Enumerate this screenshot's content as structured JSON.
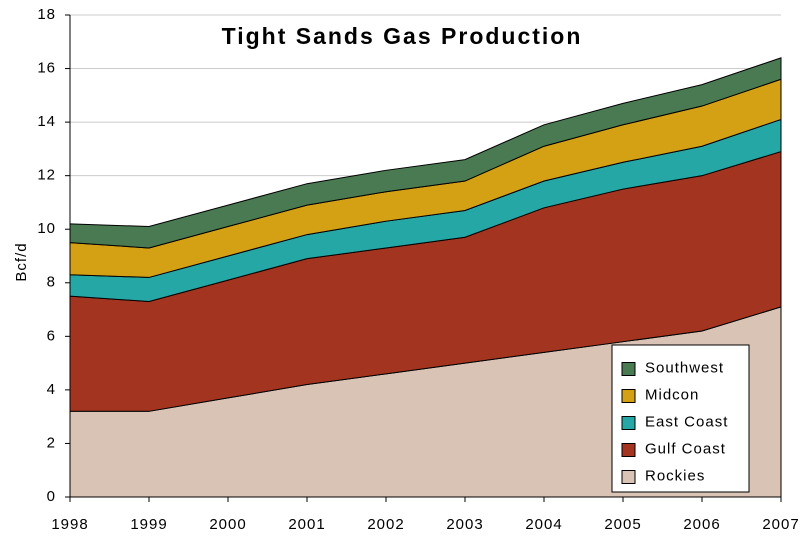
{
  "chart_data": {
    "type": "stacked_area",
    "title": "Tight Sands Gas Production",
    "y_label": "Bcf/d",
    "x": [
      1998,
      1999,
      2000,
      2001,
      2002,
      2003,
      2004,
      2005,
      2006,
      2007
    ],
    "xlim": [
      1998,
      2007
    ],
    "xticks": [
      1998,
      1999,
      2000,
      2001,
      2002,
      2003,
      2004,
      2005,
      2006,
      2007
    ],
    "ylim": [
      0,
      18
    ],
    "yticks": [
      0,
      2,
      4,
      6,
      8,
      10,
      12,
      14,
      16,
      18
    ],
    "grid": true,
    "legend": "lower right",
    "series": [
      {
        "name": "Rockies",
        "color": "#d9c3b5",
        "values": [
          3.2,
          3.2,
          3.7,
          4.2,
          4.6,
          5.0,
          5.4,
          5.8,
          6.2,
          7.1
        ]
      },
      {
        "name": "Gulf Coast",
        "color": "#a33520",
        "values": [
          4.3,
          4.1,
          4.4,
          4.7,
          4.7,
          4.7,
          5.4,
          5.7,
          5.8,
          5.8
        ]
      },
      {
        "name": "East Coast",
        "color": "#25a8a5",
        "values": [
          0.8,
          0.9,
          0.9,
          0.9,
          1.0,
          1.0,
          1.0,
          1.0,
          1.1,
          1.2
        ]
      },
      {
        "name": "Midcon",
        "color": "#d4a014",
        "values": [
          1.2,
          1.1,
          1.1,
          1.1,
          1.1,
          1.1,
          1.3,
          1.4,
          1.5,
          1.5
        ]
      },
      {
        "name": "Southwest",
        "color": "#4a7a52",
        "values": [
          0.7,
          0.8,
          0.8,
          0.8,
          0.8,
          0.8,
          0.8,
          0.8,
          0.8,
          0.8
        ]
      }
    ]
  }
}
